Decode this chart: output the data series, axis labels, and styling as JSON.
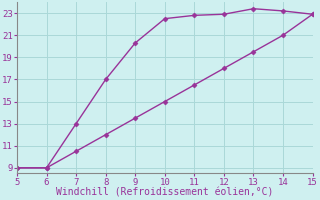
{
  "line1_x": [
    5,
    6,
    7,
    8,
    9,
    10,
    11,
    12,
    13,
    14,
    15
  ],
  "line1_y": [
    9,
    9,
    13,
    17,
    20.3,
    22.5,
    22.8,
    22.9,
    23.4,
    23.2,
    22.9
  ],
  "line2_x": [
    5,
    6,
    7,
    8,
    9,
    10,
    11,
    12,
    13,
    14,
    15
  ],
  "line2_y": [
    9,
    9,
    10.5,
    12.0,
    13.5,
    15.0,
    16.5,
    18.0,
    19.5,
    21.0,
    22.9
  ],
  "line_color": "#993399",
  "markersize": 2.5,
  "linewidth": 1.0,
  "xlabel": "Windchill (Refroidissement éolien,°C)",
  "xlim": [
    5,
    15
  ],
  "ylim": [
    8.5,
    24.0
  ],
  "xticks": [
    5,
    6,
    7,
    8,
    9,
    10,
    11,
    12,
    13,
    14,
    15
  ],
  "yticks": [
    9,
    11,
    13,
    15,
    17,
    19,
    21,
    23
  ],
  "bg_color": "#cff0f0",
  "grid_color": "#aad8d8",
  "tick_fontsize": 6.5,
  "xlabel_fontsize": 7,
  "xlabel_color": "#993399",
  "tick_color": "#993399"
}
